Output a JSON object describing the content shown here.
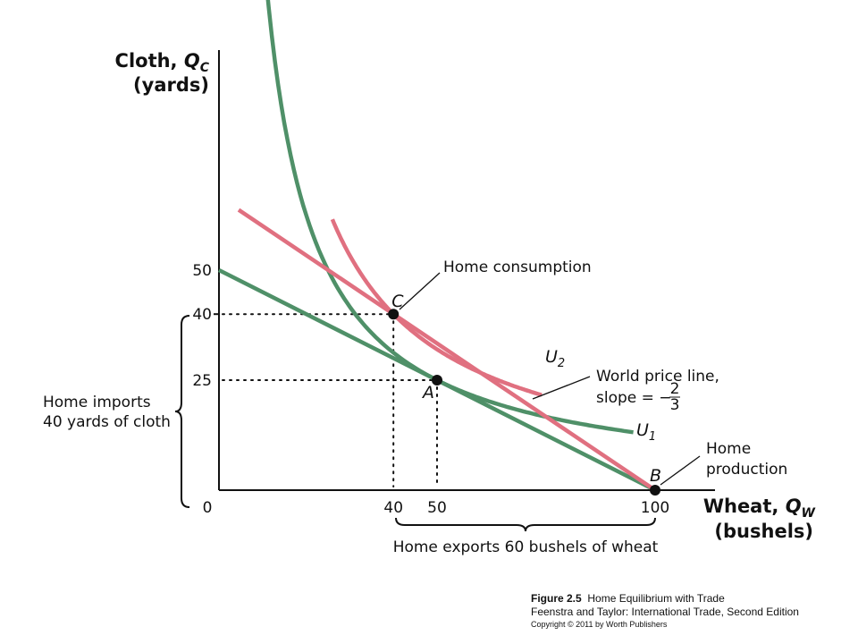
{
  "chart_data": {
    "type": "line",
    "y_axis_title_line1": "Cloth, ",
    "y_axis_symbol": "Q",
    "y_axis_subscript": "C",
    "y_axis_title_line2": "(yards)",
    "x_axis_title_line1": "Wheat, ",
    "x_axis_symbol": "Q",
    "x_axis_subscript": "W",
    "x_axis_title_line2": "(bushels)",
    "xlim": [
      0,
      100
    ],
    "ylim": [
      0,
      100
    ],
    "x_ticks": [
      {
        "value": 0,
        "label": "0"
      },
      {
        "value": 40,
        "label": "40"
      },
      {
        "value": 50,
        "label": "50"
      },
      {
        "value": 100,
        "label": "100"
      }
    ],
    "y_ticks": [
      {
        "value": 25,
        "label": "25"
      },
      {
        "value": 40,
        "label": "40"
      },
      {
        "value": 50,
        "label": "50"
      }
    ],
    "series": [
      {
        "name": "U",
        "subscript": "1",
        "color": "#4f9068",
        "kind": "indifference",
        "K": 1250,
        "x_range": [
          8.5,
          95
        ]
      },
      {
        "name": "U",
        "subscript": "2",
        "color": "#e07080",
        "kind": "indifference",
        "K": 1600,
        "x_range": [
          26,
          74
        ]
      },
      {
        "kind": "line",
        "color": "#4f9068",
        "points": [
          [
            0,
            50
          ],
          [
            100,
            0
          ]
        ]
      },
      {
        "kind": "line",
        "color": "#e07080",
        "points": [
          [
            4.5,
            63.7
          ],
          [
            100,
            0
          ]
        ]
      }
    ],
    "points": [
      {
        "label": "A",
        "x": 50,
        "y": 25
      },
      {
        "label": "B",
        "x": 100,
        "y": 0
      },
      {
        "label": "C",
        "x": 40,
        "y": 40
      }
    ],
    "annotations": {
      "home_consumption": "Home consumption",
      "world_price_line_1": "World price line,",
      "world_price_line_2": "slope = −",
      "slope_numerator": "2",
      "slope_denominator": "3",
      "home_production_1": "Home",
      "home_production_2": "production",
      "home_imports_1": "Home imports",
      "home_imports_2": "40 yards of cloth",
      "home_exports": "Home exports 60 bushels of wheat"
    },
    "colors": {
      "green": "#4f9068",
      "red": "#e07080",
      "axis": "#111111"
    }
  },
  "caption": {
    "figure_number": "Figure 2.5",
    "figure_title": "Home Equilibrium with Trade",
    "book": "Feenstra and Taylor: International Trade, Second Edition",
    "copyright": "Copyright © 2011 by Worth Publishers"
  }
}
